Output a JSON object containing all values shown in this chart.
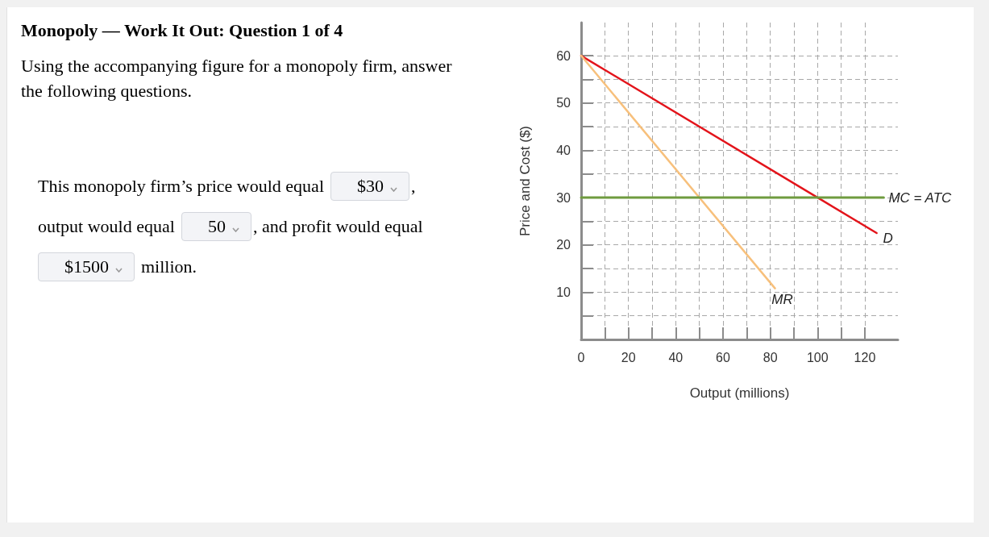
{
  "chart_data": {
    "type": "line",
    "title": "Monopoly — Work It Out: Question 1 of 4",
    "subtitle": "Using the accompanying figure for a monopoly firm, answer the following questions.",
    "annotations": [
      "This monopoly firm’s price would equal",
      "$30",
      ",",
      "output would equal",
      "50",
      ", and profit would equal",
      "$1500",
      "million."
    ],
    "xlabel": "Output (millions)",
    "ylabel": "Price and Cost ($)",
    "series": [
      {
        "name": "D",
        "color": "#e3141b",
        "x": [
          0,
          125
        ],
        "values": [
          60,
          22.5
        ]
      },
      {
        "name": "MR",
        "color": "#f7c07c",
        "x": [
          0,
          82
        ],
        "values": [
          60,
          10.8
        ]
      },
      {
        "name": "MC = ATC",
        "color": "#6f9b3f",
        "x": [
          0,
          128
        ],
        "values": [
          30,
          30
        ]
      }
    ],
    "xlim": [
      0,
      134
    ],
    "ylim": [
      0,
      67
    ],
    "xticks": [
      0,
      {
        "value": 10,
        "label": null
      },
      20,
      {
        "value": 30,
        "label": null
      },
      40,
      {
        "value": 50,
        "label": null
      },
      60,
      {
        "value": 70,
        "label": null
      },
      80,
      {
        "value": 90,
        "label": null
      },
      100,
      {
        "value": 110,
        "label": null
      },
      120
    ],
    "yticks": [
      {
        "value": 5,
        "label": null
      },
      10,
      {
        "value": 15,
        "label": null
      },
      20,
      {
        "value": 25,
        "label": null
      },
      30,
      {
        "value": 35,
        "label": null
      },
      40,
      {
        "value": 45,
        "label": null
      },
      50,
      {
        "value": 55,
        "label": null
      },
      60
    ],
    "grid": true
  }
}
